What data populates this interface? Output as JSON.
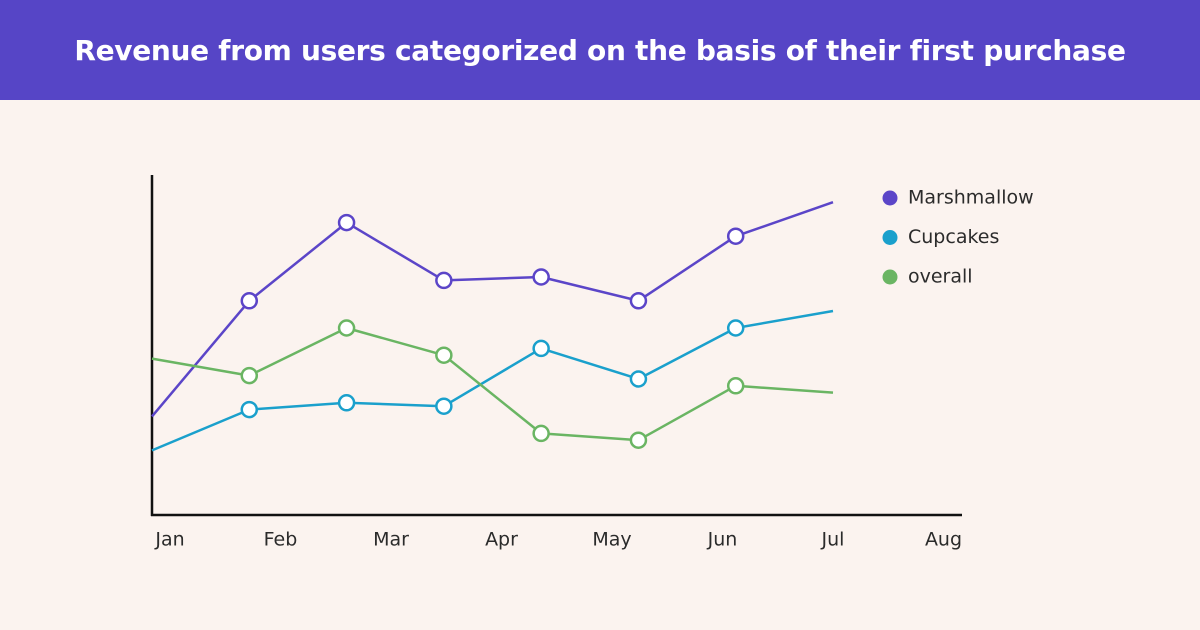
{
  "chart_data": {
    "type": "line",
    "title": "Revenue from users categorized on the basis of their first purchase",
    "categories": [
      "Jan",
      "Feb",
      "Mar",
      "Apr",
      "May",
      "Jun",
      "Jul",
      "Aug"
    ],
    "ylim": [
      0,
      100
    ],
    "series": [
      {
        "name": "Marshmallow",
        "color": "#5b45c8",
        "values": [
          29,
          63,
          86,
          69,
          70,
          63,
          82,
          92
        ]
      },
      {
        "name": "Cupcakes",
        "color": "#1aa0cc",
        "values": [
          19,
          31,
          33,
          32,
          49,
          40,
          55,
          60
        ]
      },
      {
        "name": "overall",
        "color": "#6ab563",
        "values": [
          46,
          41,
          55,
          47,
          24,
          22,
          38,
          36
        ]
      }
    ]
  }
}
